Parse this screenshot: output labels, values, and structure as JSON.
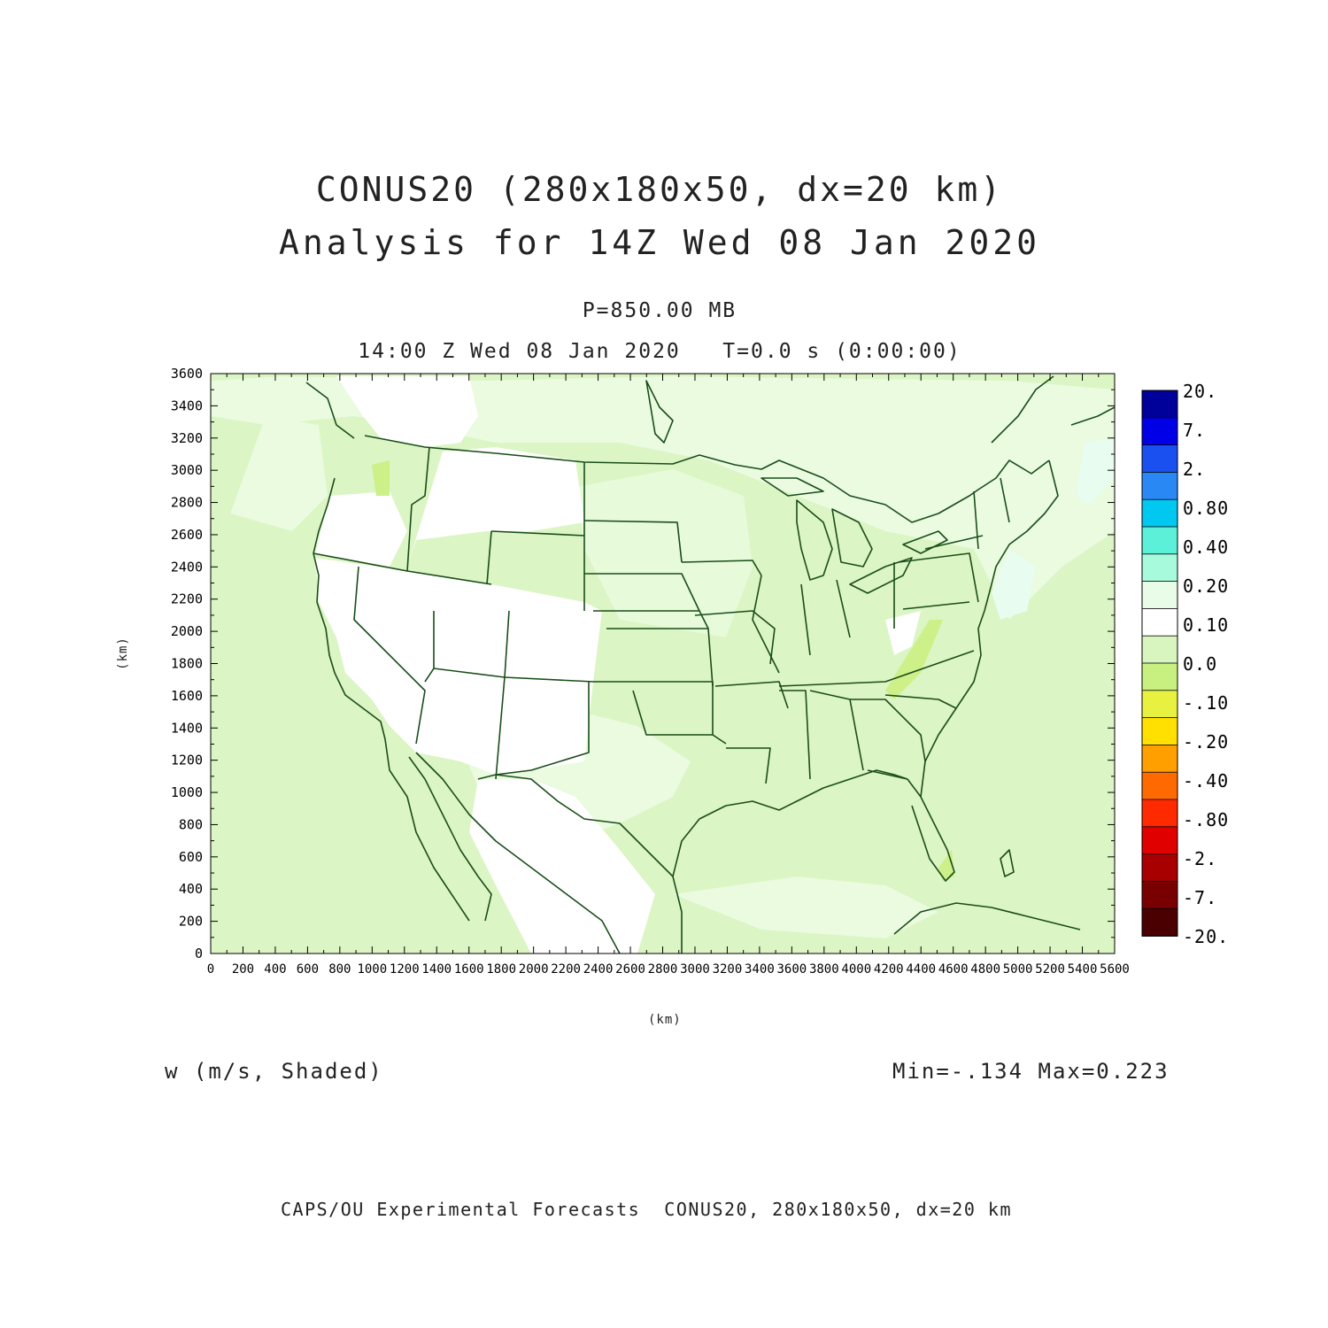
{
  "header": {
    "title_line1": "CONUS20 (280x180x50, dx=20 km)",
    "title_line2": "Analysis for 14Z Wed 08 Jan 2020",
    "level": "P=850.00 MB",
    "time": "14:00 Z Wed 08 Jan 2020   T=0.0 s (0:00:00)"
  },
  "axes": {
    "x_label": "(km)",
    "y_label": "(km)",
    "x_ticks": [
      "0",
      "200",
      "400",
      "600",
      "800",
      "1000",
      "1200",
      "1400",
      "1600",
      "1800",
      "2000",
      "2200",
      "2400",
      "2600",
      "2800",
      "3000",
      "3200",
      "3400",
      "3600",
      "3800",
      "4000",
      "4200",
      "4400",
      "4600",
      "4800",
      "5000",
      "5200",
      "5400",
      "5600"
    ],
    "y_ticks": [
      "0",
      "200",
      "400",
      "600",
      "800",
      "1000",
      "1200",
      "1400",
      "1600",
      "1800",
      "2000",
      "2200",
      "2400",
      "2600",
      "2800",
      "3000",
      "3200",
      "3400",
      "3600"
    ],
    "x_range": [
      0,
      5600
    ],
    "y_range": [
      0,
      3600
    ]
  },
  "colorbar": {
    "labels": [
      "20.",
      "7.",
      "2.",
      "0.80",
      "0.40",
      "0.20",
      "0.10",
      "0.0",
      "-.10",
      "-.20",
      "-.40",
      "-.80",
      "-2.",
      "-7.",
      "-20."
    ],
    "colors": [
      "#00009a",
      "#0000e6",
      "#1a50f0",
      "#2a88f5",
      "#00c8f0",
      "#5cf0d8",
      "#a8fadc",
      "#e8fce8",
      "#ffffff",
      "#d8f5c0",
      "#c8f080",
      "#e8f040",
      "#ffe000",
      "#ffa000",
      "#ff6a00",
      "#ff2a00",
      "#e00000",
      "#a80000",
      "#780000",
      "#4a0000"
    ]
  },
  "field": {
    "label": "w (m/s, Shaded)",
    "min_max": "Min=-.134 Max=0.223"
  },
  "footer": "CAPS/OU Experimental Forecasts  CONUS20, 280x180x50, dx=20 km"
}
